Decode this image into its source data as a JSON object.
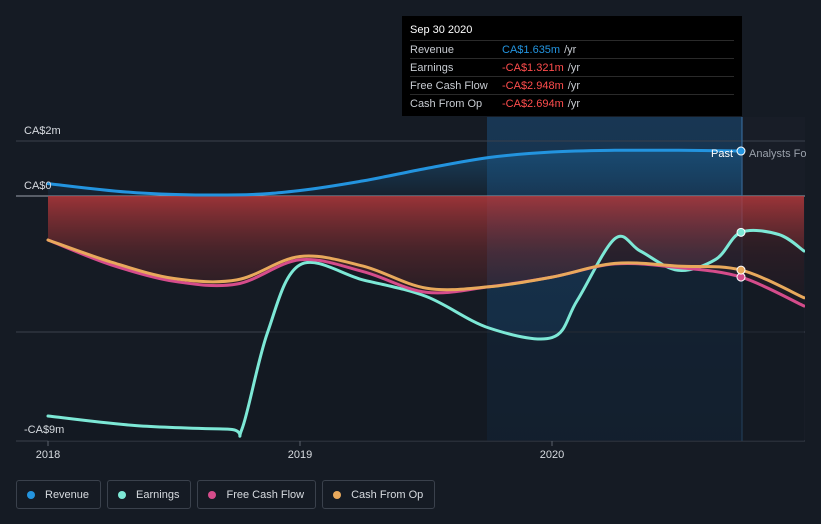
{
  "chart_data": {
    "type": "line",
    "y_labels": [
      "CA$2m",
      "CA$0",
      "-CA$9m"
    ],
    "x_ticks": [
      "2018",
      "2019",
      "2020"
    ],
    "divider_labels": {
      "past": "Past",
      "forecast": "Analysts Fo"
    },
    "ylim": [
      -9,
      2
    ],
    "series": [
      {
        "name": "Revenue",
        "color": "#2394df",
        "points": [
          [
            2018.0,
            0.45
          ],
          [
            2018.35,
            0.12
          ],
          [
            2018.75,
            0.04
          ],
          [
            2019.0,
            0.2
          ],
          [
            2019.25,
            0.55
          ],
          [
            2019.5,
            1.0
          ],
          [
            2019.75,
            1.4
          ],
          [
            2020.0,
            1.6
          ],
          [
            2020.25,
            1.66
          ],
          [
            2020.5,
            1.66
          ],
          [
            2020.75,
            1.635
          ]
        ]
      },
      {
        "name": "Earnings",
        "color": "#7de8d6",
        "points": [
          [
            2018.0,
            -8.0
          ],
          [
            2018.35,
            -8.35
          ],
          [
            2018.72,
            -8.48
          ],
          [
            2018.77,
            -8.47
          ],
          [
            2018.87,
            -5.0
          ],
          [
            2019.0,
            -2.5
          ],
          [
            2019.25,
            -3.05
          ],
          [
            2019.5,
            -3.65
          ],
          [
            2019.75,
            -4.8
          ],
          [
            2020.0,
            -5.15
          ],
          [
            2020.1,
            -3.8
          ],
          [
            2020.25,
            -1.55
          ],
          [
            2020.35,
            -2.0
          ],
          [
            2020.5,
            -2.7
          ],
          [
            2020.65,
            -2.3
          ],
          [
            2020.75,
            -1.321
          ],
          [
            2020.9,
            -1.4
          ],
          [
            2021.0,
            -2.0
          ]
        ]
      },
      {
        "name": "Free Cash Flow",
        "color": "#d54c8b",
        "points": [
          [
            2018.0,
            -1.6
          ],
          [
            2018.25,
            -2.5
          ],
          [
            2018.5,
            -3.1
          ],
          [
            2018.75,
            -3.2
          ],
          [
            2019.0,
            -2.32
          ],
          [
            2019.25,
            -2.75
          ],
          [
            2019.5,
            -3.5
          ],
          [
            2019.75,
            -3.3
          ],
          [
            2020.0,
            -2.95
          ],
          [
            2020.25,
            -2.47
          ],
          [
            2020.5,
            -2.6
          ],
          [
            2020.75,
            -2.948
          ],
          [
            2021.0,
            -4.0
          ]
        ]
      },
      {
        "name": "Cash From Op",
        "color": "#e8a95c",
        "points": [
          [
            2018.0,
            -1.6
          ],
          [
            2018.25,
            -2.4
          ],
          [
            2018.5,
            -3.0
          ],
          [
            2018.75,
            -3.05
          ],
          [
            2019.0,
            -2.2
          ],
          [
            2019.25,
            -2.55
          ],
          [
            2019.5,
            -3.35
          ],
          [
            2019.75,
            -3.3
          ],
          [
            2020.0,
            -2.95
          ],
          [
            2020.25,
            -2.45
          ],
          [
            2020.5,
            -2.55
          ],
          [
            2020.75,
            -2.694
          ],
          [
            2021.0,
            -3.7
          ]
        ]
      }
    ]
  },
  "tooltip": {
    "date": "Sep 30 2020",
    "rows": [
      {
        "label": "Revenue",
        "value": "CA$1.635m",
        "unit": "/yr",
        "color": "#2394df"
      },
      {
        "label": "Earnings",
        "value": "-CA$1.321m",
        "unit": "/yr",
        "color": "#ff4d4d"
      },
      {
        "label": "Free Cash Flow",
        "value": "-CA$2.948m",
        "unit": "/yr",
        "color": "#ff4d4d"
      },
      {
        "label": "Cash From Op",
        "value": "-CA$2.694m",
        "unit": "/yr",
        "color": "#ff4d4d"
      }
    ]
  },
  "legend": [
    {
      "label": "Revenue",
      "color": "#2394df"
    },
    {
      "label": "Earnings",
      "color": "#7de8d6"
    },
    {
      "label": "Free Cash Flow",
      "color": "#d54c8b"
    },
    {
      "label": "Cash From Op",
      "color": "#e8a95c"
    }
  ]
}
